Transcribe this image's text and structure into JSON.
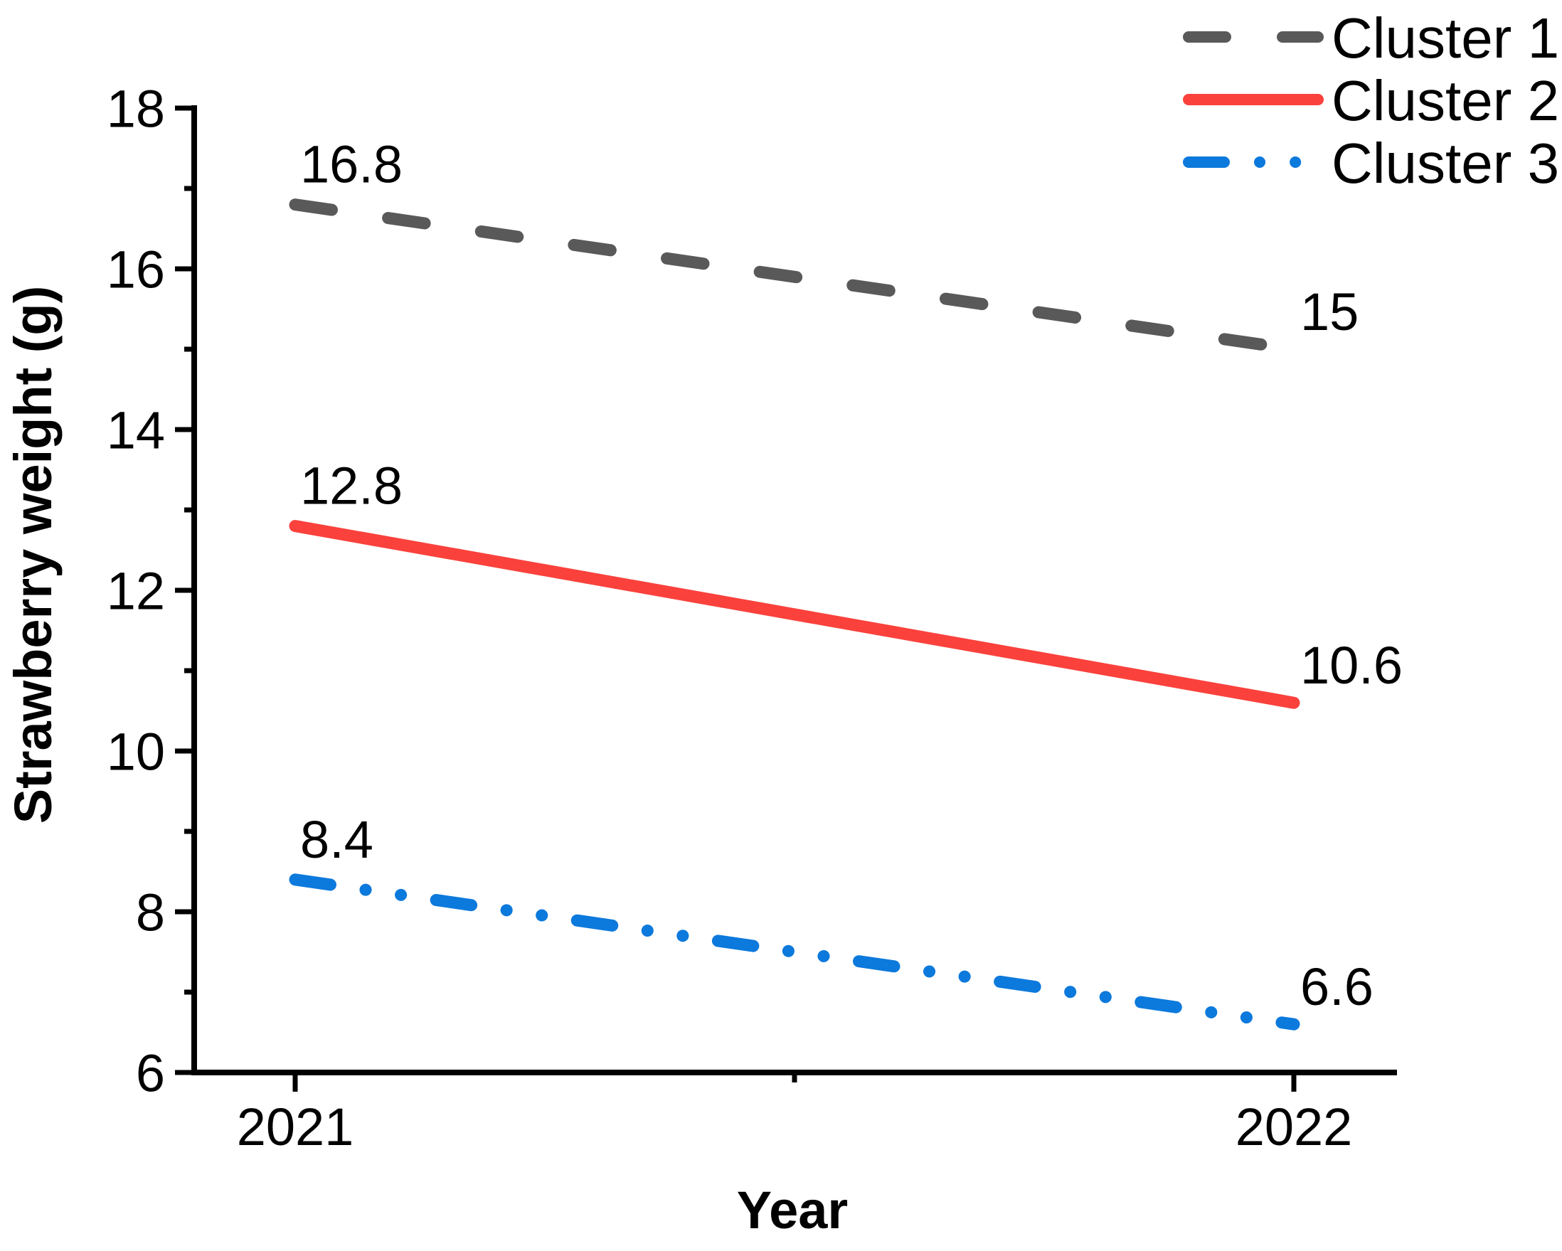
{
  "chart_data": {
    "type": "line",
    "title": "",
    "xlabel": "Year",
    "ylabel": "Strawberry weight (g)",
    "x_categories": [
      "2021",
      "2022"
    ],
    "x_tick_labels": [
      "2021",
      "2022"
    ],
    "ylim": [
      6,
      18
    ],
    "y_major_ticks": [
      6,
      8,
      10,
      12,
      14,
      16,
      18
    ],
    "y_tick_labels": [
      "6",
      "8",
      "10",
      "12",
      "14",
      "16",
      "18"
    ],
    "y_minor_tick_step": 1,
    "grid": "off",
    "legend_position": "top-right",
    "axis_color": "#000000",
    "text_color": "#000000",
    "background_color": "#ffffff",
    "series": [
      {
        "name": "Cluster 1",
        "values": [
          16.8,
          15
        ],
        "point_labels": [
          "16.8",
          "15"
        ],
        "color": "#595959",
        "line_style": "dashed"
      },
      {
        "name": "Cluster 2",
        "values": [
          12.8,
          10.6
        ],
        "point_labels": [
          "12.8",
          "10.6"
        ],
        "color": "#FA413C",
        "line_style": "solid"
      },
      {
        "name": "Cluster 3",
        "values": [
          8.4,
          6.6
        ],
        "point_labels": [
          "8.4",
          "6.6"
        ],
        "color": "#0C79DC",
        "line_style": "dash-dot-dot"
      }
    ]
  }
}
